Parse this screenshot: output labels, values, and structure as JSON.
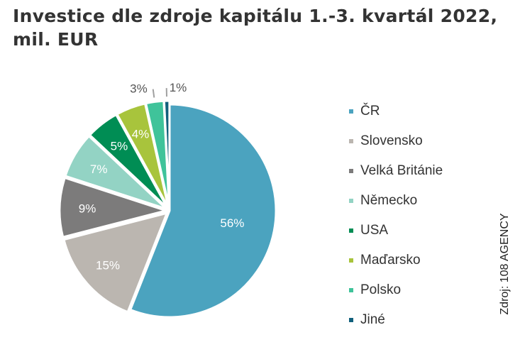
{
  "title": "Investice dle zdroje kapitálu 1.-3. kvartál 2022, mil. EUR",
  "source": "Zdroj: 108 AGENCY",
  "chart_data": {
    "type": "pie",
    "title": "Investice dle zdroje kapitálu 1.-3. kvartál 2022, mil. EUR",
    "legend_position": "right",
    "slices": [
      {
        "label": "ČR",
        "value": 56,
        "display": "56%",
        "color": "#4ba3bf"
      },
      {
        "label": "Slovensko",
        "value": 15,
        "display": "15%",
        "color": "#bbb6b0"
      },
      {
        "label": "Velká Británie",
        "value": 9,
        "display": "9%",
        "color": "#7c7b7b"
      },
      {
        "label": "Německo",
        "value": 7,
        "display": "7%",
        "color": "#93d3c4"
      },
      {
        "label": "USA",
        "value": 5,
        "display": "5%",
        "color": "#008d54"
      },
      {
        "label": "Maďarsko",
        "value": 4.5,
        "display": "4%",
        "color": "#a8c43c"
      },
      {
        "label": "Polsko",
        "value": 2.7,
        "display": "3%",
        "color": "#3fc39a"
      },
      {
        "label": "Jiné",
        "value": 0.8,
        "display": "1%",
        "color": "#11607c"
      }
    ]
  }
}
